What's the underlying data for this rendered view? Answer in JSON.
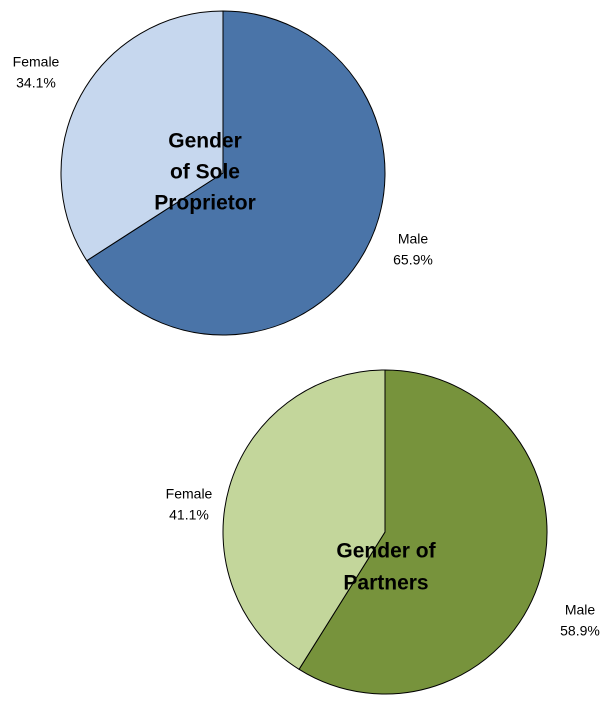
{
  "chart_data": [
    {
      "type": "pie",
      "title": [
        "Gender",
        "of Sole",
        "Proprietor"
      ],
      "categories": [
        "Male",
        "Female"
      ],
      "values": [
        65.9,
        34.1
      ],
      "value_labels": [
        "65.9%",
        "34.1%"
      ],
      "colors": [
        "#4a74a8",
        "#c6d7ee"
      ]
    },
    {
      "type": "pie",
      "title": [
        "Gender of",
        "Partners"
      ],
      "categories": [
        "Male",
        "Female"
      ],
      "values": [
        58.9,
        41.1
      ],
      "value_labels": [
        "58.9%",
        "41.1%"
      ],
      "colors": [
        "#77933c",
        "#c3d69b"
      ]
    }
  ]
}
